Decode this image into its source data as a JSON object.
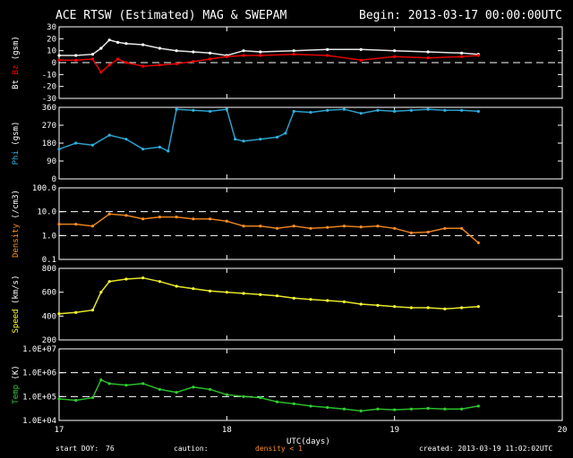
{
  "header": {
    "title": "ACE RTSW (Estimated) MAG & SWEPAM",
    "begin": "Begin: 2013-03-17 00:00:00UTC"
  },
  "footer": {
    "start_doy_label": "start DOY:",
    "start_doy_value": "76",
    "caution_label": "caution:",
    "caution_value": "density < 1",
    "created": "created: 2013-03-19 11:02:02UTC"
  },
  "colors": {
    "bt": "#ffffff",
    "bz": "#ff0000",
    "phi": "#30b0e0",
    "density": "#ff9020",
    "speed": "#ffff30",
    "temp": "#30d030",
    "caution": "#ff9020"
  },
  "chart_data": [
    {
      "type": "scatter",
      "panel": "mag",
      "ylabel_parts": [
        "Bt",
        "Bz",
        "(gsm)"
      ],
      "ylim": [
        -30,
        30
      ],
      "yticks": [
        "30",
        "20",
        "10",
        "0",
        "-10",
        "-20",
        "-30"
      ],
      "ref_lines": [
        0
      ],
      "series": [
        {
          "name": "Bt",
          "x": [
            17.0,
            17.1,
            17.2,
            17.25,
            17.3,
            17.35,
            17.4,
            17.5,
            17.6,
            17.7,
            17.8,
            17.9,
            18.0,
            18.1,
            18.2,
            18.4,
            18.6,
            18.8,
            19.0,
            19.2,
            19.4,
            19.5
          ],
          "y": [
            6,
            6,
            7,
            12,
            19,
            17,
            16,
            15,
            12,
            10,
            9,
            8,
            6,
            10,
            9,
            10,
            11,
            11,
            10,
            9,
            8,
            7
          ]
        },
        {
          "name": "Bz",
          "x": [
            17.0,
            17.1,
            17.2,
            17.25,
            17.3,
            17.35,
            17.4,
            17.5,
            17.6,
            17.7,
            17.8,
            17.9,
            18.0,
            18.1,
            18.2,
            18.4,
            18.6,
            18.8,
            19.0,
            19.2,
            19.4,
            19.5
          ],
          "y": [
            2,
            2,
            3,
            -8,
            -2,
            3,
            0,
            -3,
            -2,
            -1,
            1,
            3,
            5,
            6,
            6,
            7,
            6,
            2,
            5,
            4,
            5,
            6
          ]
        }
      ]
    },
    {
      "type": "scatter",
      "panel": "phi",
      "ylabel_parts": [
        "Phi",
        "(gsm)"
      ],
      "ylim": [
        0,
        360
      ],
      "yticks": [
        "360",
        "270",
        "180",
        "90",
        "0"
      ],
      "series": [
        {
          "name": "Phi",
          "x": [
            17.0,
            17.1,
            17.2,
            17.3,
            17.4,
            17.5,
            17.6,
            17.65,
            17.7,
            17.8,
            17.9,
            18.0,
            18.05,
            18.1,
            18.2,
            18.3,
            18.35,
            18.4,
            18.5,
            18.6,
            18.7,
            18.8,
            18.9,
            19.0,
            19.1,
            19.2,
            19.3,
            19.4,
            19.5
          ],
          "y": [
            150,
            180,
            170,
            220,
            200,
            150,
            160,
            140,
            350,
            345,
            340,
            350,
            200,
            190,
            200,
            210,
            230,
            340,
            335,
            345,
            350,
            330,
            345,
            340,
            345,
            350,
            345,
            345,
            340
          ]
        }
      ]
    },
    {
      "type": "scatter",
      "panel": "density",
      "ylabel_parts": [
        "Density",
        "(/cm3)"
      ],
      "yscale": "log",
      "ylim": [
        0.1,
        100
      ],
      "yticks": [
        "100.0",
        "10.0",
        "1.0",
        "0.1"
      ],
      "ref_lines": [
        1,
        10
      ],
      "series": [
        {
          "name": "Density",
          "x": [
            17.0,
            17.1,
            17.2,
            17.3,
            17.4,
            17.5,
            17.6,
            17.7,
            17.8,
            17.9,
            18.0,
            18.1,
            18.2,
            18.3,
            18.4,
            18.5,
            18.6,
            18.7,
            18.8,
            18.9,
            19.0,
            19.1,
            19.2,
            19.3,
            19.4,
            19.5
          ],
          "y": [
            3,
            3,
            2.5,
            8,
            7,
            5,
            6,
            6,
            5,
            5,
            4,
            2.5,
            2.5,
            2,
            2.5,
            2,
            2.2,
            2.5,
            2.3,
            2.5,
            2,
            1.3,
            1.4,
            2,
            2,
            0.5
          ]
        }
      ]
    },
    {
      "type": "scatter",
      "panel": "speed",
      "ylabel_parts": [
        "Speed",
        "(km/s)"
      ],
      "ylim": [
        200,
        800
      ],
      "yticks": [
        "800",
        "600",
        "400",
        "200"
      ],
      "series": [
        {
          "name": "Speed",
          "x": [
            17.0,
            17.1,
            17.2,
            17.25,
            17.3,
            17.4,
            17.5,
            17.6,
            17.7,
            17.8,
            17.9,
            18.0,
            18.1,
            18.2,
            18.3,
            18.4,
            18.5,
            18.6,
            18.7,
            18.8,
            18.9,
            19.0,
            19.1,
            19.2,
            19.3,
            19.4,
            19.5
          ],
          "y": [
            420,
            430,
            450,
            600,
            690,
            710,
            720,
            690,
            650,
            630,
            610,
            600,
            590,
            580,
            570,
            550,
            540,
            530,
            520,
            500,
            490,
            480,
            470,
            470,
            460,
            470,
            480
          ]
        }
      ]
    },
    {
      "type": "scatter",
      "panel": "temp",
      "ylabel_parts": [
        "Temp",
        "(K)"
      ],
      "yscale": "log",
      "ylim": [
        10000,
        10000000
      ],
      "yticks": [
        "1.0E+07",
        "1.0E+06",
        "1.0E+05",
        "1.0E+04"
      ],
      "ref_lines": [
        100000,
        1000000
      ],
      "series": [
        {
          "name": "Temp",
          "x": [
            17.0,
            17.1,
            17.2,
            17.25,
            17.3,
            17.4,
            17.5,
            17.6,
            17.7,
            17.8,
            17.9,
            18.0,
            18.1,
            18.2,
            18.3,
            18.4,
            18.5,
            18.6,
            18.7,
            18.8,
            18.9,
            19.0,
            19.1,
            19.2,
            19.3,
            19.4,
            19.5
          ],
          "y": [
            80000,
            70000,
            90000,
            500000,
            350000,
            300000,
            350000,
            200000,
            150000,
            250000,
            200000,
            120000,
            100000,
            90000,
            60000,
            50000,
            40000,
            35000,
            30000,
            25000,
            30000,
            28000,
            30000,
            32000,
            30000,
            30000,
            40000
          ]
        }
      ]
    }
  ],
  "xaxis": {
    "label": "UTC(days)",
    "ticks": [
      "17",
      "18",
      "19",
      "20"
    ],
    "xlim": [
      17,
      20
    ]
  }
}
